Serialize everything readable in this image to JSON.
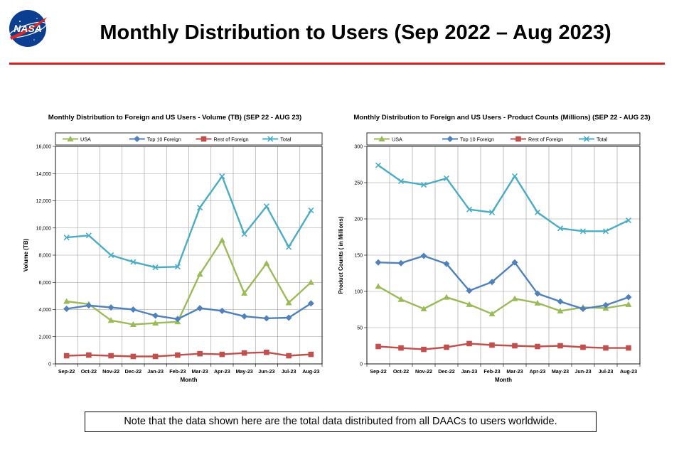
{
  "page": {
    "title": "Monthly Distribution to Users (Sep 2022 – Aug 2023)",
    "logo_text": "NASA",
    "note": "Note that the data shown here are the total data distributed from all DAACs to users worldwide."
  },
  "colors": {
    "rule": "#cc2222",
    "USA": "#9bbb59",
    "Top 10 Foreign": "#4f81bd",
    "Rest of Foreign": "#c0504d",
    "Total": "#4bacc6"
  },
  "chart_data": [
    {
      "type": "line",
      "title": "Monthly Distribution to Foreign and US Users - Volume  (TB) (SEP 22 - AUG 23)",
      "xlabel": "Month",
      "ylabel": "Volume (TB)",
      "ylim": [
        0,
        16000
      ],
      "yticks": [
        "0",
        "2,000",
        "4,000",
        "6,000",
        "8,000",
        "10,000",
        "12,000",
        "14,000",
        "16,000"
      ],
      "categories": [
        "Sep-22",
        "Oct-22",
        "Nov-22",
        "Dec-22",
        "Jan-23",
        "Feb-23",
        "Mar-23",
        "Apr-23",
        "May-23",
        "Jun-23",
        "Jul-23",
        "Aug-23"
      ],
      "legend": [
        "USA",
        "Top 10 Foreign",
        "Rest of Foreign",
        "Total"
      ],
      "series": [
        {
          "name": "USA",
          "marker": "triangle",
          "values": [
            4600,
            4400,
            3200,
            2900,
            3000,
            3100,
            6600,
            9100,
            5200,
            7400,
            4500,
            6000
          ]
        },
        {
          "name": "Top 10 Foreign",
          "marker": "diamond",
          "values": [
            4050,
            4300,
            4150,
            4000,
            3550,
            3300,
            4100,
            3900,
            3500,
            3350,
            3400,
            4450
          ]
        },
        {
          "name": "Rest of Foreign",
          "marker": "square",
          "values": [
            600,
            650,
            600,
            550,
            550,
            650,
            750,
            700,
            800,
            850,
            600,
            700
          ]
        },
        {
          "name": "Total",
          "marker": "x",
          "values": [
            9300,
            9450,
            8000,
            7500,
            7100,
            7150,
            11500,
            13800,
            9550,
            11600,
            8600,
            11300
          ]
        }
      ]
    },
    {
      "type": "line",
      "title": "Monthly Distribution to Foreign and US Users - Product Counts (Millions) (SEP 22 - AUG 23)",
      "xlabel": "Month",
      "ylabel": "Product Counts ( in Millions)",
      "ylim": [
        0,
        300
      ],
      "yticks": [
        "0",
        "50",
        "100",
        "150",
        "200",
        "250",
        "300"
      ],
      "categories": [
        "Sep-22",
        "Oct-22",
        "Nov-22",
        "Dec-22",
        "Jan-23",
        "Feb-23",
        "Mar-23",
        "Apr-23",
        "May-23",
        "Jun-23",
        "Jul-23",
        "Aug-23"
      ],
      "legend": [
        "USA",
        "Top 10 Foreign",
        "Rest of Foreign",
        "Total"
      ],
      "series": [
        {
          "name": "USA",
          "marker": "triangle",
          "values": [
            107,
            89,
            76,
            92,
            82,
            69,
            90,
            84,
            73,
            78,
            77,
            82
          ]
        },
        {
          "name": "Top 10 Foreign",
          "marker": "diamond",
          "values": [
            140,
            139,
            149,
            138,
            101,
            113,
            140,
            97,
            86,
            76,
            81,
            92
          ]
        },
        {
          "name": "Rest of Foreign",
          "marker": "square",
          "values": [
            24,
            22,
            20,
            23,
            28,
            26,
            25,
            24,
            25,
            23,
            22,
            22
          ]
        },
        {
          "name": "Total",
          "marker": "x",
          "values": [
            274,
            252,
            247,
            256,
            213,
            209,
            259,
            209,
            187,
            183,
            183,
            198
          ]
        }
      ]
    }
  ]
}
